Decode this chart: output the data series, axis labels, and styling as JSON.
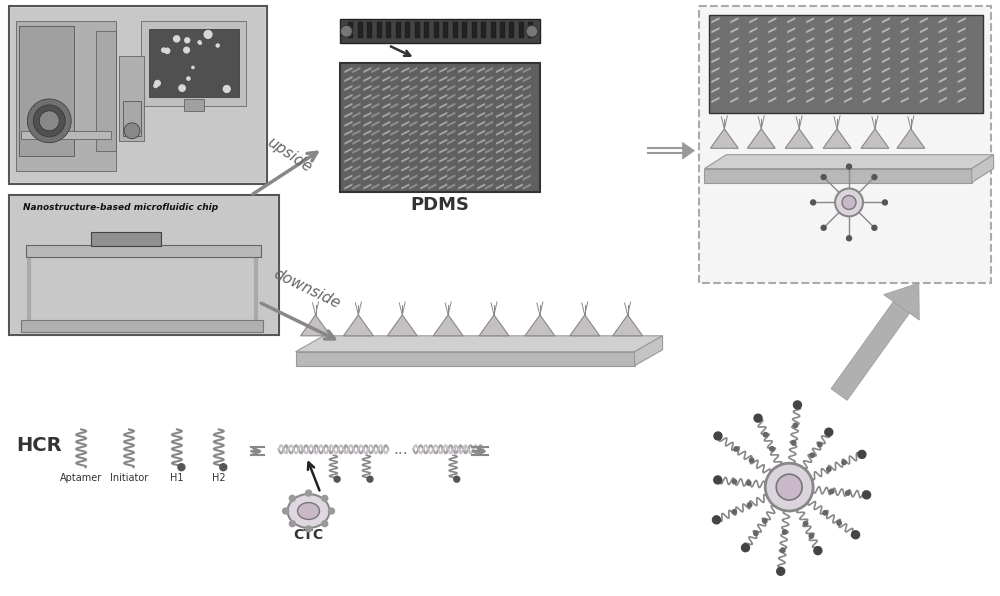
{
  "bg_color": "#ffffff",
  "labels": {
    "pdms": "PDMS",
    "nanostructure_chip": "Nanostructure-based microfluidic chip",
    "upside": "upside",
    "downside": "downside",
    "hcr": "HCR",
    "aptamer": "Aptamer",
    "initiator": "Initiator",
    "h1": "H1",
    "h2": "H2",
    "ctc": "CTC"
  },
  "layout": {
    "fig_width": 10.0,
    "fig_height": 5.96,
    "dpi": 100
  },
  "colors": {
    "arrow_color": "#888888",
    "text_color": "#333333",
    "platform_color": "#c8c8c8",
    "platform_edge": "#888888",
    "dna_color": "#aaaaaa",
    "nanoparticle_color": "#d4c8d4",
    "dark_arrow": "#555555",
    "chevron_light": "#aaaaaa",
    "chevron_dark": "#909090",
    "tri_color": "#c4c0c4"
  }
}
